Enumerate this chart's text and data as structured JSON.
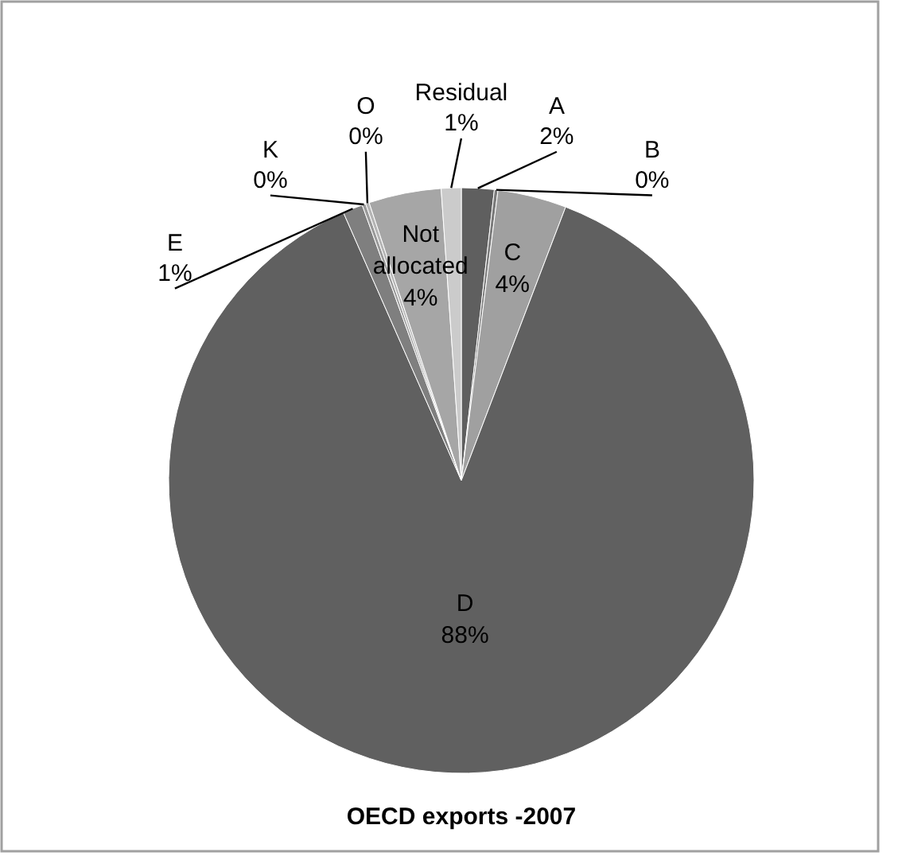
{
  "chart_data": {
    "type": "pie",
    "title": "OECD exports -2007",
    "categories": [
      "A",
      "B",
      "C",
      "D",
      "E",
      "K",
      "O",
      "Not allocated",
      "Residual"
    ],
    "values": [
      1.8,
      0.2,
      3.8,
      87.6,
      1.1,
      0.2,
      0.2,
      4.0,
      1.1
    ],
    "value_labels": [
      "2%",
      "0%",
      "4%",
      "88%",
      "1%",
      "0%",
      "0%",
      "4%",
      "1%"
    ],
    "colors": [
      "#5f5f5f",
      "#7a7a7a",
      "#a0a0a0",
      "#606060",
      "#7f7f7f",
      "#9a9a9a",
      "#b5b5b5",
      "#a6a6a6",
      "#cbcbcb"
    ]
  }
}
